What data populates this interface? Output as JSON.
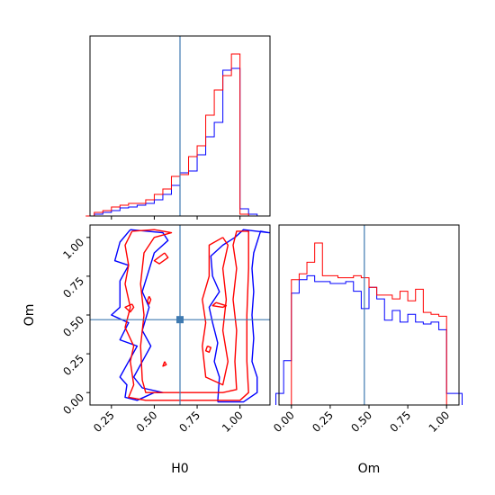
{
  "chart_data": [
    {
      "type": "histogram",
      "panel": "H0 marginal",
      "x_range": [
        0.125,
        1.175
      ],
      "truth": 0.65,
      "series": [
        {
          "name": "",
          "color": "#0000ff",
          "bin_edges": [
            0.15,
            0.2,
            0.25,
            0.3,
            0.35,
            0.4,
            0.45,
            0.5,
            0.55,
            0.6,
            0.65,
            0.7,
            0.75,
            0.8,
            0.85,
            0.9,
            0.95,
            1.0,
            1.05,
            1.1
          ],
          "counts": [
            0.01,
            0.02,
            0.03,
            0.045,
            0.05,
            0.06,
            0.07,
            0.09,
            0.12,
            0.17,
            0.24,
            0.25,
            0.34,
            0.44,
            0.52,
            0.81,
            0.82,
            0.04,
            0.01
          ]
        },
        {
          "name": "",
          "color": "#ff0000",
          "bin_edges": [
            0.1,
            0.15,
            0.2,
            0.25,
            0.3,
            0.35,
            0.4,
            0.45,
            0.5,
            0.55,
            0.6,
            0.65,
            0.7,
            0.75,
            0.8,
            0.85,
            0.9,
            0.95,
            1.0,
            1.05
          ],
          "counts": [
            0.0,
            0.02,
            0.03,
            0.05,
            0.06,
            0.07,
            0.07,
            0.09,
            0.12,
            0.15,
            0.22,
            0.23,
            0.33,
            0.39,
            0.56,
            0.7,
            0.78,
            0.9,
            0.01
          ]
        }
      ]
    },
    {
      "type": "histogram",
      "panel": "Om marginal",
      "x_range": [
        -0.08,
        1.08
      ],
      "truth": 0.47,
      "series": [
        {
          "name": "",
          "color": "#0000ff",
          "bin_edges": [
            -0.1,
            -0.05,
            0.0,
            0.05,
            0.1,
            0.15,
            0.2,
            0.25,
            0.3,
            0.35,
            0.4,
            0.45,
            0.5,
            0.55,
            0.6,
            0.65,
            0.7,
            0.75,
            0.8,
            0.85,
            0.9,
            0.95,
            1.0,
            1.05,
            1.1
          ],
          "counts": [
            0.06,
            0.23,
            0.58,
            0.65,
            0.67,
            0.64,
            0.64,
            0.63,
            0.63,
            0.64,
            0.59,
            0.5,
            0.61,
            0.55,
            0.44,
            0.49,
            0.43,
            0.47,
            0.43,
            0.42,
            0.43,
            0.39,
            0.06,
            0.06
          ]
        },
        {
          "name": "",
          "color": "#ff0000",
          "bin_edges": [
            0.0,
            0.05,
            0.1,
            0.15,
            0.2,
            0.25,
            0.3,
            0.35,
            0.4,
            0.45,
            0.5,
            0.55,
            0.6,
            0.65,
            0.7,
            0.75,
            0.8,
            0.85,
            0.9,
            0.95,
            1.0
          ],
          "counts": [
            0.65,
            0.68,
            0.74,
            0.84,
            0.67,
            0.67,
            0.66,
            0.66,
            0.67,
            0.66,
            0.61,
            0.57,
            0.57,
            0.55,
            0.59,
            0.54,
            0.6,
            0.48,
            0.47,
            0.46
          ]
        }
      ]
    },
    {
      "type": "contour",
      "panel": "Om vs H0",
      "x_range": [
        0.125,
        1.175
      ],
      "y_range": [
        -0.08,
        1.08
      ],
      "truth": {
        "x": 0.65,
        "y": 0.47
      },
      "xlabel": "H0",
      "ylabel": "Om",
      "x_ticks": [
        0.25,
        0.5,
        0.75,
        1.0
      ],
      "y_ticks": [
        0.0,
        0.25,
        0.5,
        0.75,
        1.0
      ],
      "x_tick_labels": [
        "0.25",
        "0.50",
        "0.75",
        "1.00"
      ],
      "y_tick_labels": [
        "0.00",
        "0.25",
        "0.50",
        "0.75",
        "1.00"
      ],
      "series": [
        {
          "name": "",
          "color": "#0000ff",
          "contours": [
            [
              [
                0.36,
                1.05
              ],
              [
                0.3,
                0.97
              ],
              [
                0.27,
                0.85
              ],
              [
                0.35,
                0.82
              ],
              [
                0.3,
                0.72
              ],
              [
                0.3,
                0.55
              ],
              [
                0.25,
                0.5
              ],
              [
                0.35,
                0.45
              ],
              [
                0.3,
                0.34
              ],
              [
                0.4,
                0.3
              ],
              [
                0.35,
                0.2
              ],
              [
                0.3,
                0.1
              ],
              [
                0.34,
                0.05
              ],
              [
                0.33,
                -0.03
              ],
              [
                0.4,
                -0.05
              ],
              [
                0.5,
                0.0
              ],
              [
                0.55,
                0.0
              ],
              [
                0.43,
                0.03
              ],
              [
                0.38,
                0.1
              ],
              [
                0.43,
                0.2
              ],
              [
                0.48,
                0.3
              ],
              [
                0.43,
                0.4
              ],
              [
                0.47,
                0.55
              ],
              [
                0.43,
                0.65
              ],
              [
                0.5,
                0.9
              ],
              [
                0.58,
                0.98
              ],
              [
                0.55,
                1.03
              ],
              [
                0.36,
                1.05
              ]
            ],
            [
              [
                0.87,
                -0.06
              ],
              [
                1.02,
                -0.06
              ],
              [
                1.1,
                0.0
              ],
              [
                1.1,
                0.1
              ],
              [
                1.07,
                0.2
              ],
              [
                1.08,
                0.35
              ],
              [
                1.07,
                0.5
              ],
              [
                1.08,
                0.65
              ],
              [
                1.07,
                0.8
              ],
              [
                1.08,
                0.9
              ],
              [
                1.12,
                1.04
              ],
              [
                1.17,
                1.03
              ],
              [
                1.02,
                1.05
              ],
              [
                0.97,
                1.0
              ],
              [
                0.9,
                0.95
              ],
              [
                0.83,
                0.88
              ],
              [
                0.84,
                0.75
              ],
              [
                0.88,
                0.65
              ],
              [
                0.82,
                0.55
              ],
              [
                0.84,
                0.45
              ],
              [
                0.87,
                0.32
              ],
              [
                0.85,
                0.2
              ],
              [
                0.88,
                0.1
              ],
              [
                0.87,
                -0.06
              ]
            ]
          ]
        },
        {
          "name": "",
          "color": "#ff0000",
          "contours": [
            [
              [
                0.37,
                1.04
              ],
              [
                0.33,
                0.95
              ],
              [
                0.35,
                0.82
              ],
              [
                0.33,
                0.7
              ],
              [
                0.36,
                0.55
              ],
              [
                0.33,
                0.42
              ],
              [
                0.38,
                0.3
              ],
              [
                0.36,
                0.2
              ],
              [
                0.38,
                0.05
              ],
              [
                0.35,
                -0.03
              ],
              [
                0.45,
                -0.05
              ],
              [
                0.75,
                -0.05
              ],
              [
                1.0,
                -0.05
              ],
              [
                1.05,
                0.0
              ],
              [
                1.04,
                0.2
              ],
              [
                1.04,
                0.5
              ],
              [
                1.05,
                0.8
              ],
              [
                1.05,
                1.04
              ],
              [
                0.98,
                1.04
              ],
              [
                0.96,
                0.95
              ],
              [
                0.98,
                0.8
              ],
              [
                0.96,
                0.6
              ],
              [
                0.98,
                0.4
              ],
              [
                0.97,
                0.2
              ],
              [
                0.98,
                0.02
              ],
              [
                0.9,
                0.0
              ],
              [
                0.45,
                0.0
              ],
              [
                0.43,
                0.08
              ],
              [
                0.42,
                0.3
              ],
              [
                0.44,
                0.5
              ],
              [
                0.42,
                0.7
              ],
              [
                0.44,
                0.9
              ],
              [
                0.5,
                1.0
              ],
              [
                0.6,
                1.03
              ],
              [
                0.5,
                1.05
              ],
              [
                0.37,
                1.04
              ]
            ],
            [
              [
                0.9,
                1.0
              ],
              [
                0.82,
                0.95
              ],
              [
                0.82,
                0.75
              ],
              [
                0.78,
                0.6
              ],
              [
                0.8,
                0.45
              ],
              [
                0.78,
                0.3
              ],
              [
                0.8,
                0.1
              ],
              [
                0.9,
                0.05
              ],
              [
                0.93,
                0.2
              ],
              [
                0.9,
                0.4
              ],
              [
                0.92,
                0.6
              ],
              [
                0.9,
                0.8
              ],
              [
                0.93,
                0.95
              ],
              [
                0.9,
                1.0
              ]
            ],
            [
              [
                0.56,
                0.9
              ],
              [
                0.5,
                0.85
              ],
              [
                0.53,
                0.83
              ],
              [
                0.58,
                0.87
              ],
              [
                0.56,
                0.9
              ]
            ],
            [
              [
                0.37,
                0.57
              ],
              [
                0.33,
                0.55
              ],
              [
                0.36,
                0.52
              ],
              [
                0.38,
                0.55
              ],
              [
                0.37,
                0.57
              ]
            ],
            [
              [
                0.47,
                0.62
              ],
              [
                0.46,
                0.59
              ],
              [
                0.47,
                0.57
              ],
              [
                0.48,
                0.6
              ],
              [
                0.47,
                0.62
              ]
            ],
            [
              [
                0.86,
                0.58
              ],
              [
                0.84,
                0.56
              ],
              [
                0.9,
                0.55
              ],
              [
                0.92,
                0.56
              ],
              [
                0.86,
                0.58
              ]
            ],
            [
              [
                0.81,
                0.3
              ],
              [
                0.8,
                0.27
              ],
              [
                0.82,
                0.26
              ],
              [
                0.83,
                0.29
              ],
              [
                0.81,
                0.3
              ]
            ],
            [
              [
                0.56,
                0.2
              ],
              [
                0.55,
                0.17
              ],
              [
                0.57,
                0.18
              ],
              [
                0.56,
                0.2
              ]
            ]
          ]
        }
      ]
    }
  ],
  "colors": {
    "truth_line": "#3f7ab0",
    "series_a": "#0000ff",
    "series_b": "#ff0000"
  }
}
